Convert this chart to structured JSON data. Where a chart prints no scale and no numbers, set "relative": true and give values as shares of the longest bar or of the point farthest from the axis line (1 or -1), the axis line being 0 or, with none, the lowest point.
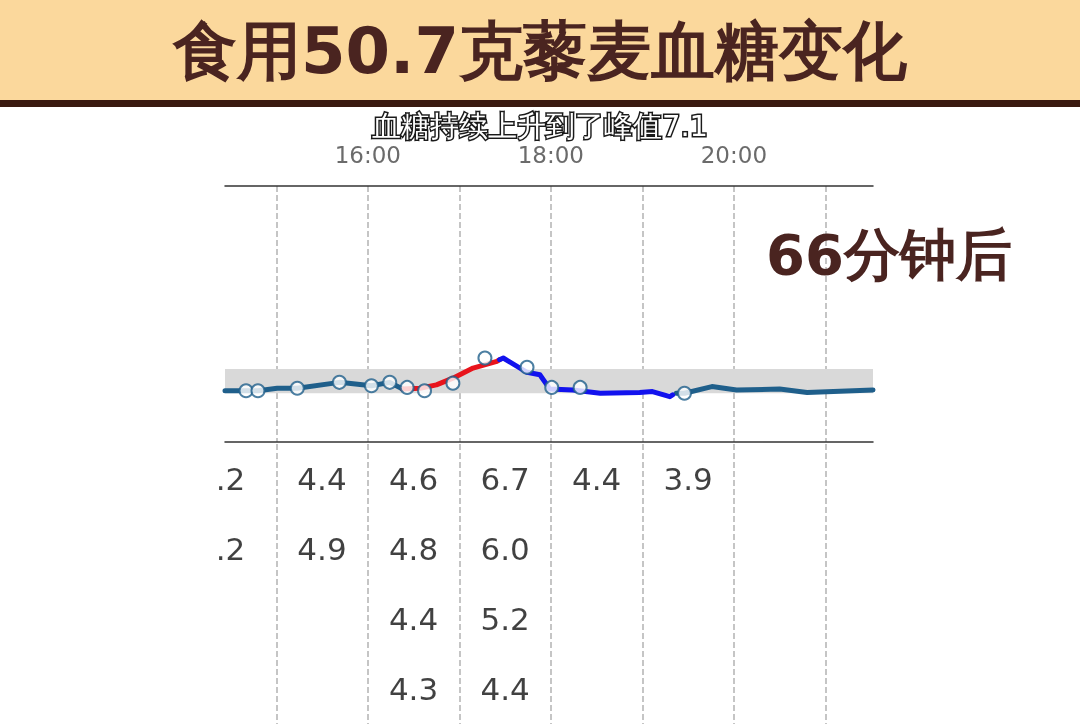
{
  "chart_data": [
    {
      "type": "line",
      "title": "食用50.7克藜麦血糖变化",
      "subtitle": "血糖持续上升到了峰值7.1",
      "annotations": [
        "66分钟后"
      ],
      "relative": true,
      "xlim": [
        14.44,
        21.52
      ],
      "xticks": [
        {
          "value": 15,
          "label": null
        },
        {
          "value": 16,
          "label": "16:00"
        },
        {
          "value": 17,
          "label": null
        },
        {
          "value": 18,
          "label": "18:00"
        },
        {
          "value": 19,
          "label": null
        },
        {
          "value": 20,
          "label": "20:00"
        },
        {
          "value": 21,
          "label": null
        }
      ],
      "grid": "x",
      "bands": [
        {
          "axis": "y",
          "from": 0.58,
          "to": 0.87,
          "color": "#d9d9d9"
        }
      ],
      "series": [
        {
          "type": "line",
          "color": "#1f5f8b",
          "x": [
            14.44,
            14.67,
            14.8,
            15.01,
            15.23,
            15.69,
            16.04,
            16.24,
            16.38,
            17.9,
            19.37,
            19.46,
            19.76,
            20.03,
            20.5,
            20.8,
            21.52
          ],
          "values": [
            0.61,
            0.61,
            0.61,
            0.64,
            0.64,
            0.71,
            0.67,
            0.71,
            0.63,
            null,
            0.58,
            0.58,
            0.66,
            0.62,
            0.63,
            0.59,
            0.62
          ]
        },
        {
          "type": "scatter",
          "color": "#1f5f8b",
          "marker": "circle",
          "x": [
            14.67,
            14.8,
            15.23,
            15.69,
            16.04,
            16.24,
            16.43,
            16.62,
            16.93,
            17.28,
            17.74,
            18.01,
            18.32,
            19.46
          ],
          "values": [
            0.61,
            0.61,
            0.64,
            0.71,
            0.67,
            0.71,
            0.65,
            0.61,
            0.7,
            1.0,
            0.89,
            0.65,
            0.65,
            0.58
          ]
        },
        {
          "type": "line",
          "color": "#e8141c",
          "x": [
            16.38,
            16.57,
            16.75,
            16.93,
            17.15,
            17.41,
            17.44
          ],
          "values": [
            0.63,
            0.64,
            0.68,
            0.76,
            0.88,
            0.96,
            0.98
          ]
        },
        {
          "type": "line",
          "color": "#1212ee",
          "x": [
            17.44,
            17.48,
            17.74,
            17.88,
            17.99,
            18.24,
            18.54,
            18.97,
            19.11,
            19.3,
            19.33
          ],
          "values": [
            0.98,
            1.0,
            0.83,
            0.8,
            0.63,
            0.62,
            0.58,
            0.59,
            0.6,
            0.54,
            0.56
          ]
        }
      ]
    },
    {
      "type": "other",
      "cell_labels": [
        [
          ".2",
          "4.4",
          "4.6",
          "6.7",
          "4.4",
          "3.9",
          null
        ],
        [
          ".2",
          "4.9",
          "4.8",
          "6.0",
          null,
          null,
          null
        ],
        [
          null,
          null,
          "4.4",
          "5.2",
          null,
          null,
          null
        ],
        [
          null,
          null,
          "4.3",
          "4.4",
          null,
          null,
          null
        ]
      ]
    }
  ]
}
